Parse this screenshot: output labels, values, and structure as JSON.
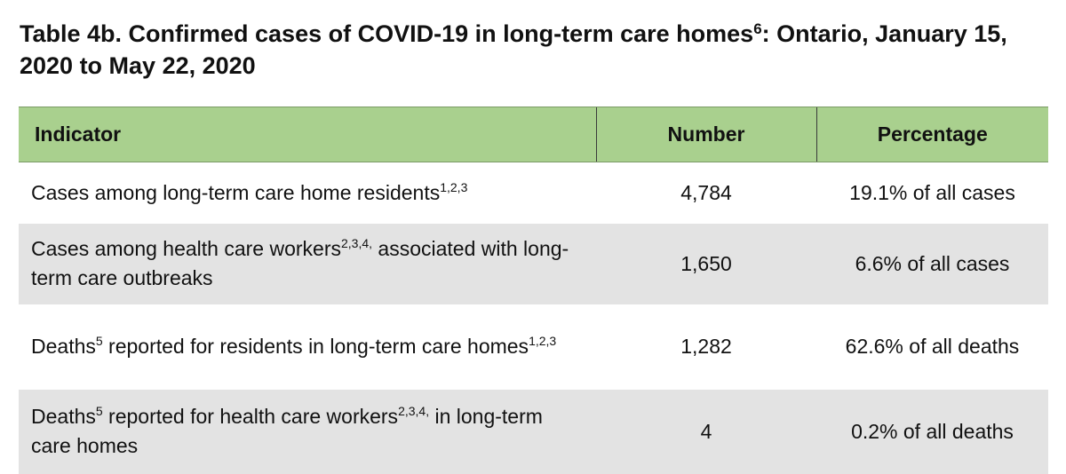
{
  "title": {
    "text_before": "Table 4b. Confirmed cases of COVID-19 in long-term care homes",
    "footnote": "6",
    "text_after": ": Ontario, January 15, 2020 to May 22, 2020"
  },
  "table": {
    "headers": {
      "indicator": "Indicator",
      "number": "Number",
      "percentage": "Percentage"
    },
    "rows": [
      {
        "indicator": [
          {
            "text": "Cases among long-term care home residents"
          },
          {
            "sup": "1,2,3"
          }
        ],
        "number": "4,784",
        "percentage": "19.1% of all cases"
      },
      {
        "indicator": [
          {
            "text": "Cases among health care workers"
          },
          {
            "sup": "2,3,4,"
          },
          {
            "text": " associated with long-term care outbreaks"
          }
        ],
        "number": "1,650",
        "percentage": "6.6% of all cases"
      },
      {
        "indicator": [
          {
            "text": "Deaths"
          },
          {
            "sup": "5"
          },
          {
            "text": " reported for residents in long-term care homes"
          },
          {
            "sup": "1,2,3"
          }
        ],
        "number": "1,282",
        "percentage": "62.6% of all deaths"
      },
      {
        "indicator": [
          {
            "text": "Deaths"
          },
          {
            "sup": "5"
          },
          {
            "text": " reported for health care workers"
          },
          {
            "sup": "2,3,4,"
          },
          {
            "text": " in long-term care homes"
          }
        ],
        "number": "4",
        "percentage": "0.2% of all deaths"
      }
    ]
  },
  "colors": {
    "header_green": "#a9d08e",
    "row_gray": "#e3e3e3",
    "row_white": "#ffffff"
  }
}
